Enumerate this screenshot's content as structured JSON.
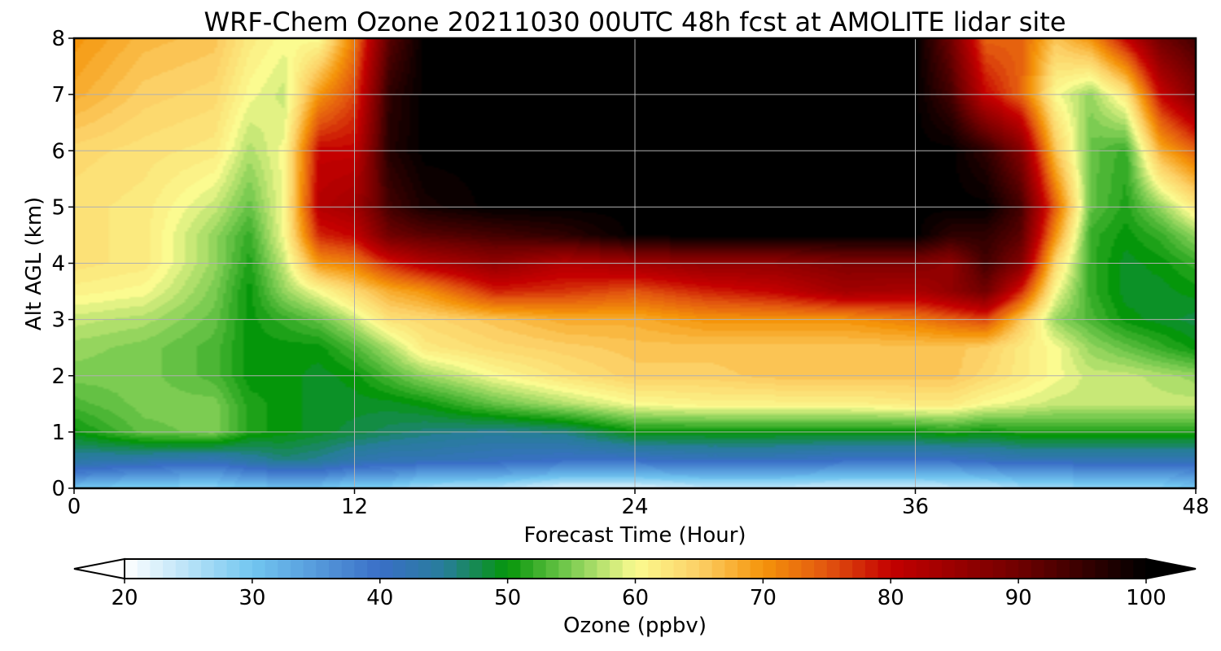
{
  "chart_data": {
    "type": "heatmap",
    "title": "WRF-Chem Ozone  20211030 00UTC 48h fcst at AMOLITE lidar site",
    "xlabel": "Forecast Time (Hour)",
    "ylabel": "Alt AGL (km)",
    "xlim": [
      0,
      48
    ],
    "ylim": [
      0,
      8
    ],
    "x_ticks": [
      0,
      12,
      24,
      36,
      48
    ],
    "y_ticks": [
      0,
      1,
      2,
      3,
      4,
      5,
      6,
      7,
      8
    ],
    "grid": true,
    "colorbar": {
      "label": "Ozone  (ppbv)",
      "min": 20,
      "max": 100,
      "ticks": [
        20,
        30,
        40,
        50,
        60,
        70,
        80,
        90,
        100
      ],
      "extend": "both",
      "orientation": "horizontal",
      "placement": "bottom",
      "stops": [
        {
          "value": 20,
          "color": "#ffffff"
        },
        {
          "value": 30,
          "color": "#72c6f0"
        },
        {
          "value": 40,
          "color": "#3a6fc7"
        },
        {
          "value": 45,
          "color": "#277d9a"
        },
        {
          "value": 50,
          "color": "#05960a"
        },
        {
          "value": 55,
          "color": "#7ccc52"
        },
        {
          "value": 60,
          "color": "#fbfb90"
        },
        {
          "value": 65,
          "color": "#fcd066"
        },
        {
          "value": 70,
          "color": "#f5940a"
        },
        {
          "value": 75,
          "color": "#e2560f"
        },
        {
          "value": 80,
          "color": "#c40000"
        },
        {
          "value": 90,
          "color": "#700000"
        },
        {
          "value": 100,
          "color": "#000000"
        }
      ]
    },
    "field": {
      "units": "ppbv",
      "x": [
        0,
        3,
        6,
        7.5,
        9,
        10.5,
        12,
        13.5,
        15,
        18,
        21,
        24,
        27,
        30,
        33,
        36,
        37.5,
        39,
        40.5,
        42,
        43.5,
        45,
        46.5,
        48
      ],
      "y": [
        0,
        0.25,
        0.5,
        1,
        1.5,
        2,
        2.5,
        3,
        3.5,
        4,
        4.5,
        5,
        6,
        7,
        8
      ],
      "values": [
        [
          30,
          28,
          28,
          30,
          30,
          30,
          28,
          28,
          26,
          25,
          22,
          22,
          24,
          24,
          23,
          23,
          24,
          24,
          26,
          26,
          28,
          28,
          28,
          30
        ],
        [
          38,
          36,
          35,
          37,
          38,
          38,
          36,
          36,
          34,
          34,
          32,
          32,
          33,
          33,
          32,
          32,
          32,
          33,
          34,
          34,
          35,
          35,
          35,
          36
        ],
        [
          44,
          43,
          42,
          44,
          46,
          45,
          43,
          42,
          42,
          41,
          40,
          40,
          41,
          41,
          40,
          40,
          40,
          41,
          42,
          42,
          42,
          42,
          42,
          42
        ],
        [
          50,
          54,
          55,
          51,
          50,
          49,
          48,
          47,
          46,
          45,
          46,
          50,
          50,
          50,
          50,
          50,
          51,
          50,
          51,
          51,
          51,
          51,
          51,
          51
        ],
        [
          53,
          55,
          55,
          51,
          50,
          49,
          49,
          49,
          50,
          54,
          57,
          60,
          61,
          61,
          61,
          62,
          62,
          60,
          59,
          58,
          58,
          58,
          58,
          58
        ],
        [
          55,
          55,
          53,
          50,
          50,
          49,
          50,
          53,
          56,
          60,
          63,
          65,
          65,
          66,
          66,
          66,
          66,
          64,
          62,
          60,
          58,
          58,
          57,
          56
        ],
        [
          56,
          55,
          53,
          50,
          50,
          50,
          53,
          57,
          62,
          64,
          65,
          66,
          66,
          66,
          66,
          66,
          66,
          65,
          62,
          60,
          56,
          54,
          52,
          50
        ],
        [
          58,
          57,
          54,
          50,
          52,
          54,
          58,
          63,
          64,
          66,
          68,
          68,
          70,
          70,
          70,
          72,
          74,
          76,
          66,
          56,
          53,
          50,
          49,
          48
        ],
        [
          61,
          60,
          55,
          50,
          56,
          60,
          64,
          68,
          70,
          78,
          77,
          75,
          78,
          80,
          84,
          83,
          86,
          90,
          78,
          60,
          52,
          49,
          49,
          50
        ],
        [
          63,
          62,
          56,
          51,
          58,
          70,
          72,
          78,
          82,
          86,
          82,
          84,
          86,
          86,
          88,
          88,
          86,
          94,
          88,
          64,
          52,
          49,
          50,
          52
        ],
        [
          63,
          62,
          56,
          52,
          60,
          78,
          80,
          90,
          92,
          94,
          96,
          100,
          100,
          100,
          100,
          100,
          96,
          96,
          92,
          70,
          52,
          50,
          52,
          56
        ],
        [
          63,
          62,
          58,
          54,
          60,
          82,
          84,
          94,
          98,
          100,
          100,
          100,
          100,
          100,
          100,
          100,
          100,
          100,
          94,
          74,
          54,
          51,
          56,
          62
        ],
        [
          64,
          63,
          62,
          57,
          60,
          80,
          80,
          97,
          100,
          100,
          100,
          100,
          100,
          100,
          100,
          100,
          100,
          96,
          88,
          66,
          54,
          52,
          68,
          74
        ],
        [
          68,
          65,
          64,
          60,
          58,
          70,
          76,
          96,
          100,
          100,
          100,
          100,
          100,
          100,
          100,
          100,
          94,
          80,
          74,
          60,
          56,
          62,
          80,
          88
        ],
        [
          70,
          67,
          66,
          62,
          60,
          60,
          72,
          92,
          100,
          100,
          100,
          100,
          100,
          100,
          100,
          100,
          90,
          74,
          74,
          66,
          70,
          80,
          90,
          94
        ]
      ]
    }
  }
}
